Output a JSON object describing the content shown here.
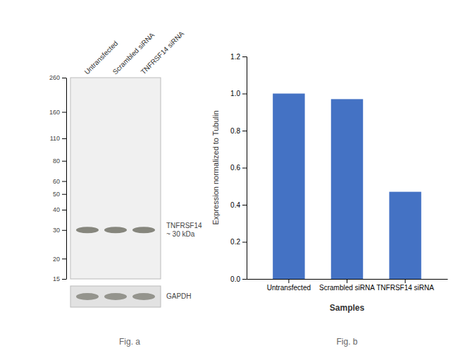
{
  "chart_data": [
    {
      "type": "blot",
      "title": "Fig. a",
      "categories": [
        "Untransfected",
        "Scrambled siRNA",
        "TNFRSF14 siRNA"
      ],
      "values": [
        30,
        30,
        30
      ],
      "color": "#7a7a70",
      "log": "y",
      "ylim": [
        15,
        260
      ],
      "yticks": [
        260,
        160,
        110,
        80,
        60,
        50,
        40,
        30,
        20,
        15
      ],
      "annotations": [
        "TNFRSF14\n~ 30 kDa",
        "GAPDH"
      ]
    },
    {
      "type": "bar",
      "title": "Fig. b",
      "xlabel": "Samples",
      "ylabel": "Expression normalized to Tubulin",
      "categories": [
        "Untransfected",
        "Scrambled siRNA",
        "TNFRSF14 siRNA"
      ],
      "values": [
        1.0,
        0.97,
        0.47
      ],
      "color": "#4472C4",
      "ylim": [
        0,
        1.2
      ],
      "yticks": [
        {
          "value": 0,
          "label": "0.0"
        },
        0.2,
        0.4,
        0.6,
        0.8,
        {
          "value": 1.0,
          "label": "1.0"
        },
        1.2
      ],
      "grid": false
    }
  ]
}
